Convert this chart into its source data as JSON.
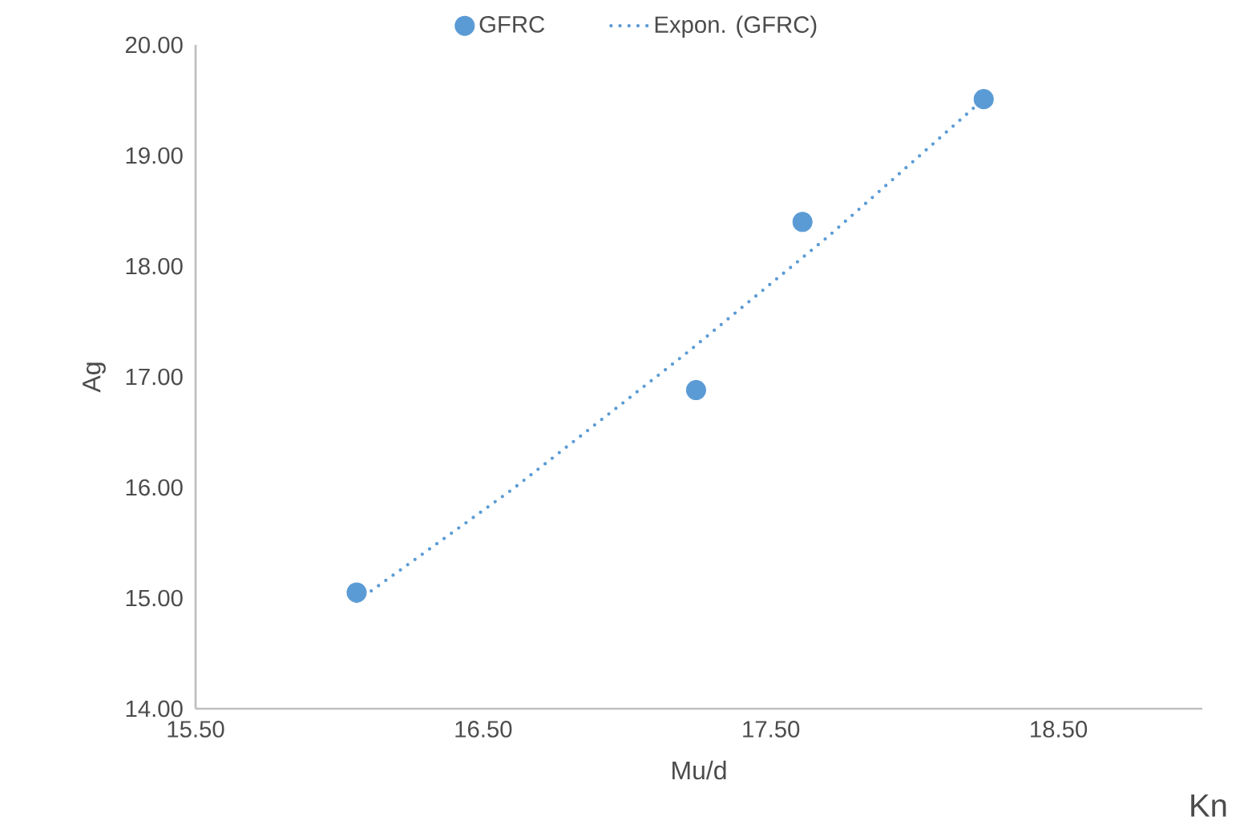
{
  "chart_data": {
    "type": "scatter",
    "xlabel": "Mu/d",
    "ylabel": "Ag",
    "xlim": [
      15.5,
      19.0
    ],
    "xticks": [
      {
        "value": 15.5,
        "label": "15.50"
      },
      {
        "value": 16.5,
        "label": "16.50"
      },
      {
        "value": 17.5,
        "label": "17.50"
      },
      {
        "value": 18.5,
        "label": "18.50"
      }
    ],
    "ylim": [
      14.0,
      20.0
    ],
    "yticks": [
      {
        "value": 14,
        "label": "14.00"
      },
      {
        "value": 15,
        "label": "15.00"
      },
      {
        "value": 16,
        "label": "16.00"
      },
      {
        "value": 17,
        "label": "17.00"
      },
      {
        "value": 18,
        "label": "18.00"
      },
      {
        "value": 19,
        "label": "19.00"
      },
      {
        "value": 20,
        "label": "20.00"
      }
    ],
    "series": [
      {
        "name": "GFRC",
        "color": "#5b9bd5",
        "x": [
          16.06,
          17.24,
          17.61,
          18.24
        ],
        "values": [
          15.05,
          16.88,
          18.4,
          19.51
        ]
      },
      {
        "name": "Expon. (GFRC)",
        "type": "line",
        "line_style": "dotted",
        "marker": "none",
        "color": "#5b9bd5",
        "x": [
          16.06,
          16.6,
          17.2,
          17.7,
          18.24
        ],
        "values": [
          14.97,
          15.98,
          17.2,
          18.27,
          19.51
        ]
      }
    ],
    "grid": false,
    "legend": "top",
    "annotations": [
      "Kn"
    ]
  }
}
